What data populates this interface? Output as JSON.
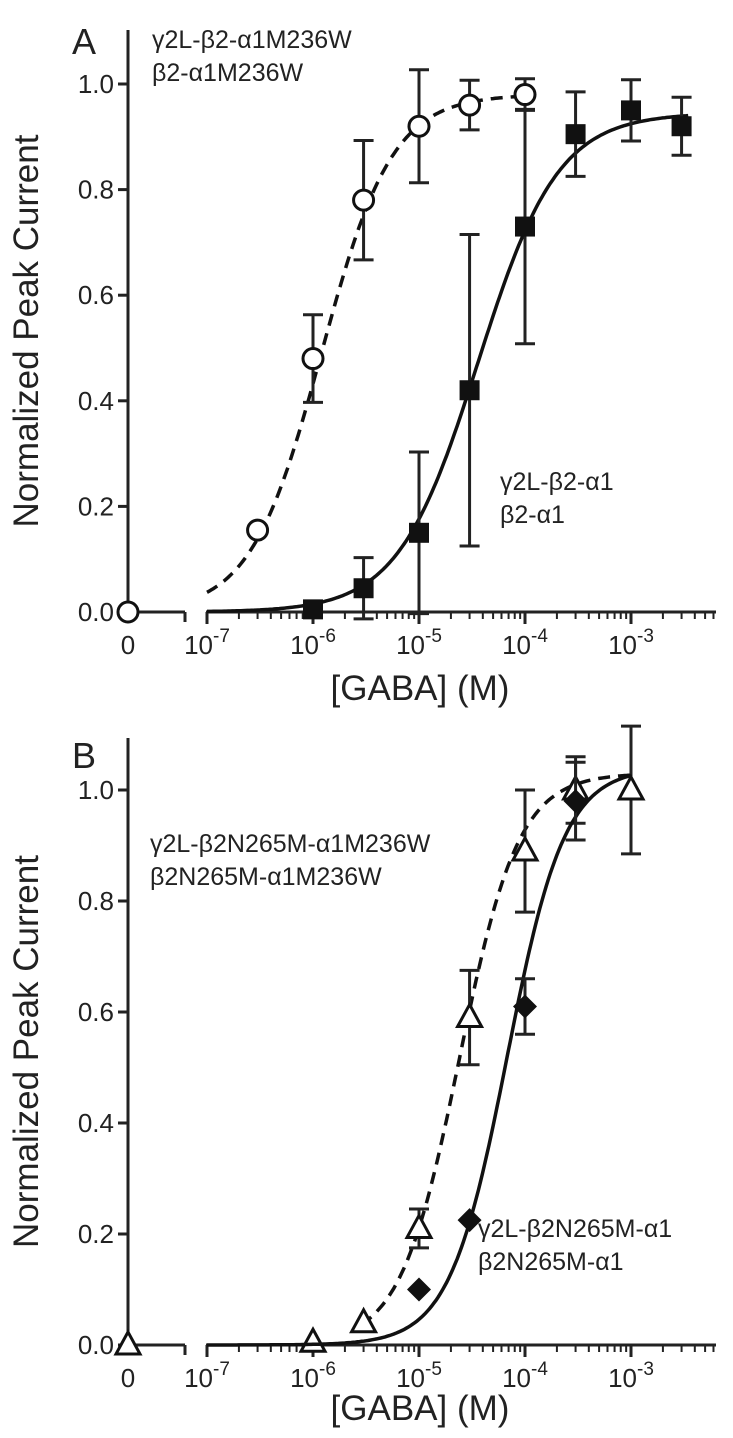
{
  "chart_data": [
    {
      "panel_label": "A",
      "type": "scatter",
      "xlabel": "[GABA] (M)",
      "ylabel": "Normalized  Peak Current",
      "xscale": "log (with broken axis for zero)",
      "xticks": [
        {
          "value": 0,
          "base": "0",
          "exp": ""
        },
        {
          "value": 1e-07,
          "base": "10",
          "exp": "-7"
        },
        {
          "value": 1e-06,
          "base": "10",
          "exp": "-6"
        },
        {
          "value": 1e-05,
          "base": "10",
          "exp": "-5"
        },
        {
          "value": 0.0001,
          "base": "10",
          "exp": "-4"
        },
        {
          "value": 0.001,
          "base": "10",
          "exp": "-3"
        }
      ],
      "yticks": [
        "0.0",
        "0.2",
        "0.4",
        "0.6",
        "0.8",
        "1.0"
      ],
      "ylim": [
        0,
        1.1
      ],
      "grid": false,
      "series": [
        {
          "name_lines": [
            "γ2L-β2-α1M236W",
            "β2-α1M236W"
          ],
          "marker": "open-circle",
          "line": "dashed",
          "fit": {
            "ec50": 1.2e-06,
            "hill": 1.3,
            "max": 0.98
          },
          "points": [
            {
              "x": 0,
              "y": 0.0,
              "err": 0
            },
            {
              "x": 3e-07,
              "y": 0.155,
              "err": 0
            },
            {
              "x": 1e-06,
              "y": 0.48,
              "err": 0.083
            },
            {
              "x": 3e-06,
              "y": 0.78,
              "err": 0.113
            },
            {
              "x": 1e-05,
              "y": 0.92,
              "err": 0.107
            },
            {
              "x": 3e-05,
              "y": 0.96,
              "err": 0.047
            },
            {
              "x": 0.0001,
              "y": 0.98,
              "err": 0.03
            }
          ]
        },
        {
          "name_lines": [
            "γ2L-β2-α1",
            "β2-α1"
          ],
          "marker": "filled-square",
          "line": "solid",
          "fit": {
            "ec50": 3.6e-05,
            "hill": 1.15,
            "max": 0.945
          },
          "points": [
            {
              "x": 1e-06,
              "y": 0.005,
              "err": 0
            },
            {
              "x": 3e-06,
              "y": 0.045,
              "err": 0.058
            },
            {
              "x": 1e-05,
              "y": 0.15,
              "err": 0.153
            },
            {
              "x": 3e-05,
              "y": 0.42,
              "err": 0.295
            },
            {
              "x": 0.0001,
              "y": 0.73,
              "err": 0.222
            },
            {
              "x": 0.0003,
              "y": 0.905,
              "err": 0.08
            },
            {
              "x": 0.001,
              "y": 0.95,
              "err": 0.058
            },
            {
              "x": 0.003,
              "y": 0.92,
              "err": 0.055
            }
          ]
        }
      ]
    },
    {
      "panel_label": "B",
      "type": "scatter",
      "xlabel": "[GABA] (M)",
      "ylabel": "Normalized  Peak Current",
      "xscale": "log (with broken axis for zero)",
      "xticks": [
        {
          "value": 0,
          "base": "0",
          "exp": ""
        },
        {
          "value": 1e-07,
          "base": "10",
          "exp": "-7"
        },
        {
          "value": 1e-06,
          "base": "10",
          "exp": "-6"
        },
        {
          "value": 1e-05,
          "base": "10",
          "exp": "-5"
        },
        {
          "value": 0.0001,
          "base": "10",
          "exp": "-4"
        },
        {
          "value": 0.001,
          "base": "10",
          "exp": "-3"
        }
      ],
      "yticks": [
        "0.0",
        "0.2",
        "0.4",
        "0.6",
        "0.8",
        "1.0"
      ],
      "ylim": [
        0,
        1.1
      ],
      "grid": false,
      "series": [
        {
          "name_lines": [
            "γ2L-β2N265M-α1M236W",
            "β2N265M-α1M236W"
          ],
          "marker": "open-triangle",
          "line": "dashed",
          "fit": {
            "ec50": 2.4e-05,
            "hill": 1.55,
            "max": 1.03
          },
          "points": [
            {
              "x": 0,
              "y": 0.0,
              "err": 0
            },
            {
              "x": 1e-06,
              "y": 0.005,
              "err": 0
            },
            {
              "x": 3e-06,
              "y": 0.04,
              "err": 0
            },
            {
              "x": 1e-05,
              "y": 0.21,
              "err": 0.035
            },
            {
              "x": 3e-05,
              "y": 0.59,
              "err": 0.085
            },
            {
              "x": 0.0001,
              "y": 0.89,
              "err": 0.11
            },
            {
              "x": 0.0003,
              "y": 1.0,
              "err": 0.06
            },
            {
              "x": 0.001,
              "y": 1.0,
              "err": 0.115
            }
          ]
        },
        {
          "name_lines": [
            "γ2L-β2N265M-α1",
            "β2N265M-α1"
          ],
          "marker": "filled-diamond",
          "line": "solid",
          "fit": {
            "ec50": 6.8e-05,
            "hill": 1.6,
            "max": 1.04
          },
          "points": [
            {
              "x": 1e-05,
              "y": 0.1,
              "err": 0
            },
            {
              "x": 3e-05,
              "y": 0.225,
              "err": 0
            },
            {
              "x": 0.0001,
              "y": 0.61,
              "err": 0.05
            },
            {
              "x": 0.0003,
              "y": 0.98,
              "err": 0.07
            }
          ]
        }
      ]
    }
  ]
}
